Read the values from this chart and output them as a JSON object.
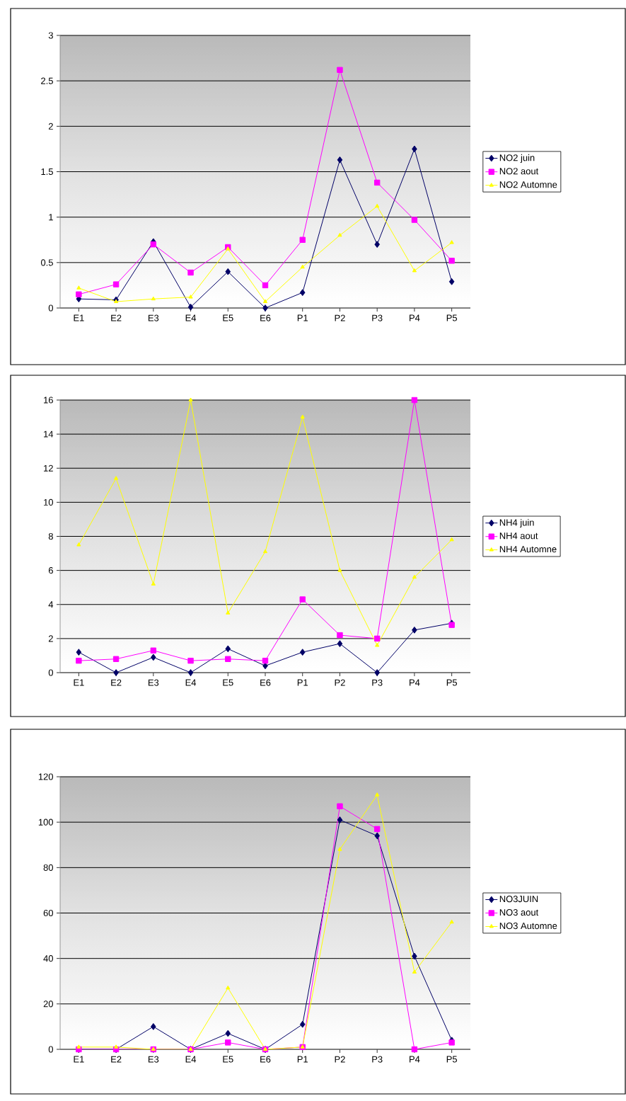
{
  "chart_data": [
    {
      "type": "line",
      "categories": [
        "E1",
        "E2",
        "E3",
        "E4",
        "E5",
        "E6",
        "P1",
        "P2",
        "P3",
        "P4",
        "P5"
      ],
      "series": [
        {
          "name": "NO2 juin",
          "color": "#000066",
          "marker": "diamond",
          "values": [
            0.1,
            0.09,
            0.73,
            0.01,
            0.4,
            0.0,
            0.17,
            1.63,
            0.7,
            1.75,
            0.29
          ]
        },
        {
          "name": "NO2 aout",
          "color": "#ff00ff",
          "marker": "square",
          "values": [
            0.15,
            0.26,
            0.7,
            0.39,
            0.67,
            0.25,
            0.75,
            2.62,
            1.38,
            0.97,
            0.52
          ]
        },
        {
          "name": "NO2 Automne",
          "color": "#ffff00",
          "marker": "triangle",
          "values": [
            0.22,
            0.07,
            0.1,
            0.12,
            0.65,
            0.07,
            0.45,
            0.8,
            1.12,
            0.41,
            0.72
          ]
        }
      ],
      "ylim": [
        0,
        3
      ],
      "yticks": [
        0,
        0.5,
        1,
        1.5,
        2,
        2.5,
        3
      ],
      "grid": "y",
      "legend": "right"
    },
    {
      "type": "line",
      "categories": [
        "E1",
        "E2",
        "E3",
        "E4",
        "E5",
        "E6",
        "P1",
        "P2",
        "P3",
        "P4",
        "P5"
      ],
      "series": [
        {
          "name": "NH4 juin",
          "color": "#000066",
          "marker": "diamond",
          "values": [
            1.2,
            0,
            0.9,
            0,
            1.4,
            0.4,
            1.2,
            1.7,
            0,
            2.5,
            2.9
          ]
        },
        {
          "name": "NH4 aout",
          "color": "#ff00ff",
          "marker": "square",
          "values": [
            0.7,
            0.8,
            1.3,
            0.7,
            0.8,
            0.7,
            4.3,
            2.2,
            2.0,
            16,
            2.8
          ]
        },
        {
          "name": "NH4 Automne",
          "color": "#ffff00",
          "marker": "triangle",
          "values": [
            7.5,
            11.4,
            5.2,
            16,
            3.5,
            7.1,
            15,
            6,
            1.6,
            5.6,
            7.8
          ]
        }
      ],
      "ylim": [
        0,
        16
      ],
      "yticks": [
        0,
        2,
        4,
        6,
        8,
        10,
        12,
        14,
        16
      ],
      "grid": "y",
      "legend": "right"
    },
    {
      "type": "line",
      "categories": [
        "E1",
        "E2",
        "E3",
        "E4",
        "E5",
        "E6",
        "P1",
        "P2",
        "P3",
        "P4",
        "P5"
      ],
      "series": [
        {
          "name": "NO3JUIN",
          "color": "#000066",
          "marker": "diamond",
          "values": [
            0,
            0,
            10,
            0,
            7,
            0,
            11,
            101,
            94,
            41,
            4
          ]
        },
        {
          "name": "NO3 aout",
          "color": "#ff00ff",
          "marker": "square",
          "values": [
            0,
            0,
            0,
            0,
            3,
            0,
            1,
            107,
            97,
            0,
            3
          ]
        },
        {
          "name": "NO3 Automne",
          "color": "#ffff00",
          "marker": "triangle",
          "values": [
            1,
            1,
            0,
            0,
            27,
            0,
            1,
            88,
            112,
            34,
            56
          ]
        }
      ],
      "ylim": [
        0,
        120
      ],
      "yticks": [
        0,
        20,
        40,
        60,
        80,
        100,
        120
      ],
      "grid": "y",
      "legend": "right"
    }
  ]
}
